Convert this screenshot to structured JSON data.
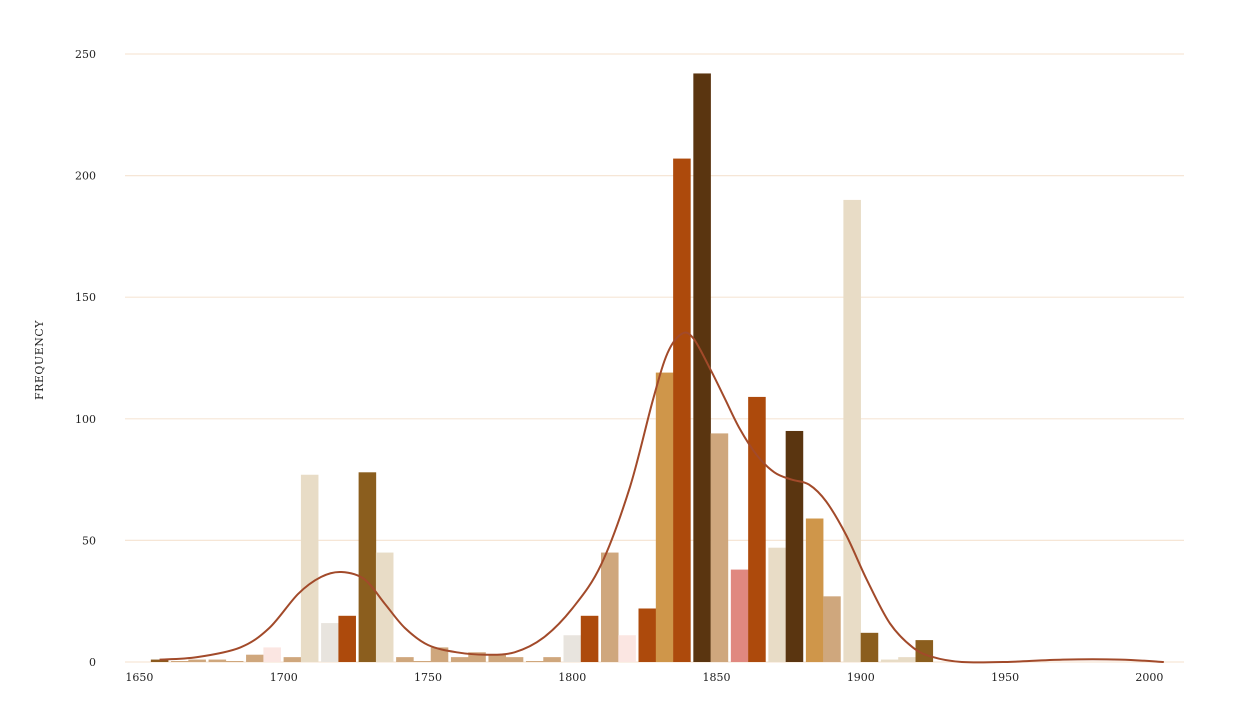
{
  "chart_data": {
    "type": "bar",
    "title": "",
    "xlabel": "",
    "ylabel": "FREQUENCY",
    "xlim": [
      1645,
      2012
    ],
    "ylim": [
      0,
      250
    ],
    "x_ticks": [
      "1650",
      "1700",
      "1750",
      "1800",
      "1850",
      "1900",
      "1950",
      "2000"
    ],
    "y_ticks": [
      "0",
      "50",
      "100",
      "150",
      "200",
      "250"
    ],
    "grid": true,
    "legend": "none",
    "bin_width": 6.5,
    "bars": [
      {
        "x": 1657,
        "value": 1,
        "color": "#8b5a1e"
      },
      {
        "x": 1664,
        "value": 0,
        "color": "#cfa77d"
      },
      {
        "x": 1670,
        "value": 1,
        "color": "#cfa77d"
      },
      {
        "x": 1677,
        "value": 1,
        "color": "#cfa77d"
      },
      {
        "x": 1683,
        "value": 0,
        "color": "#cfa77d"
      },
      {
        "x": 1690,
        "value": 3,
        "color": "#cfa77d"
      },
      {
        "x": 1696,
        "value": 6,
        "color": "#fbe6e2"
      },
      {
        "x": 1703,
        "value": 2,
        "color": "#cfa77d"
      },
      {
        "x": 1709,
        "value": 77,
        "color": "#e8dcc6"
      },
      {
        "x": 1716,
        "value": 16,
        "color": "#e8e4de"
      },
      {
        "x": 1722,
        "value": 19,
        "color": "#ad4a0c"
      },
      {
        "x": 1729,
        "value": 78,
        "color": "#8b5e1e"
      },
      {
        "x": 1735,
        "value": 45,
        "color": "#e8dcc6"
      },
      {
        "x": 1742,
        "value": 2,
        "color": "#cfa77d"
      },
      {
        "x": 1748,
        "value": 0,
        "color": "#cfa77d"
      },
      {
        "x": 1754,
        "value": 6,
        "color": "#cfa77d"
      },
      {
        "x": 1761,
        "value": 2,
        "color": "#cfa77d"
      },
      {
        "x": 1767,
        "value": 4,
        "color": "#cfa77d"
      },
      {
        "x": 1774,
        "value": 3,
        "color": "#cfa77d"
      },
      {
        "x": 1780,
        "value": 2,
        "color": "#cfa77d"
      },
      {
        "x": 1787,
        "value": 0,
        "color": "#cfa77d"
      },
      {
        "x": 1793,
        "value": 2,
        "color": "#cfa77d"
      },
      {
        "x": 1800,
        "value": 11,
        "color": "#e8e4de"
      },
      {
        "x": 1806,
        "value": 19,
        "color": "#ad4a0c"
      },
      {
        "x": 1813,
        "value": 45,
        "color": "#cfa77d"
      },
      {
        "x": 1819,
        "value": 11,
        "color": "#fbe6e2"
      },
      {
        "x": 1826,
        "value": 22,
        "color": "#ad4a0c"
      },
      {
        "x": 1832,
        "value": 119,
        "color": "#cf964a"
      },
      {
        "x": 1838,
        "value": 207,
        "color": "#ad4a0c"
      },
      {
        "x": 1845,
        "value": 242,
        "color": "#5a3510"
      },
      {
        "x": 1851,
        "value": 94,
        "color": "#cfa77d"
      },
      {
        "x": 1858,
        "value": 38,
        "color": "#e08880"
      },
      {
        "x": 1864,
        "value": 109,
        "color": "#ad4a0c"
      },
      {
        "x": 1871,
        "value": 47,
        "color": "#e8dcc6"
      },
      {
        "x": 1877,
        "value": 95,
        "color": "#5a3510"
      },
      {
        "x": 1884,
        "value": 59,
        "color": "#cf964a"
      },
      {
        "x": 1890,
        "value": 27,
        "color": "#cfa77d"
      },
      {
        "x": 1897,
        "value": 190,
        "color": "#e8dcc6"
      },
      {
        "x": 1903,
        "value": 12,
        "color": "#8b5e1e"
      },
      {
        "x": 1910,
        "value": 1,
        "color": "#e8dcc6"
      },
      {
        "x": 1916,
        "value": 2,
        "color": "#e8dcc6"
      },
      {
        "x": 1922,
        "value": 9,
        "color": "#8b5e1e"
      }
    ],
    "density_curve": {
      "color": "#a24a2a",
      "points": [
        [
          1657,
          1
        ],
        [
          1670,
          2
        ],
        [
          1685,
          6
        ],
        [
          1695,
          14
        ],
        [
          1705,
          28
        ],
        [
          1713,
          35
        ],
        [
          1720,
          37
        ],
        [
          1728,
          34
        ],
        [
          1735,
          24
        ],
        [
          1742,
          14
        ],
        [
          1750,
          7
        ],
        [
          1760,
          4
        ],
        [
          1770,
          3
        ],
        [
          1780,
          4
        ],
        [
          1790,
          10
        ],
        [
          1800,
          22
        ],
        [
          1810,
          40
        ],
        [
          1820,
          72
        ],
        [
          1828,
          108
        ],
        [
          1833,
          127
        ],
        [
          1838,
          135
        ],
        [
          1842,
          133
        ],
        [
          1848,
          120
        ],
        [
          1853,
          108
        ],
        [
          1858,
          96
        ],
        [
          1864,
          85
        ],
        [
          1870,
          78
        ],
        [
          1876,
          75
        ],
        [
          1882,
          73
        ],
        [
          1888,
          66
        ],
        [
          1895,
          52
        ],
        [
          1902,
          34
        ],
        [
          1910,
          16
        ],
        [
          1918,
          6
        ],
        [
          1925,
          2
        ],
        [
          1935,
          0
        ],
        [
          1950,
          0
        ],
        [
          1970,
          1
        ],
        [
          1990,
          1
        ],
        [
          2005,
          0
        ]
      ]
    }
  }
}
